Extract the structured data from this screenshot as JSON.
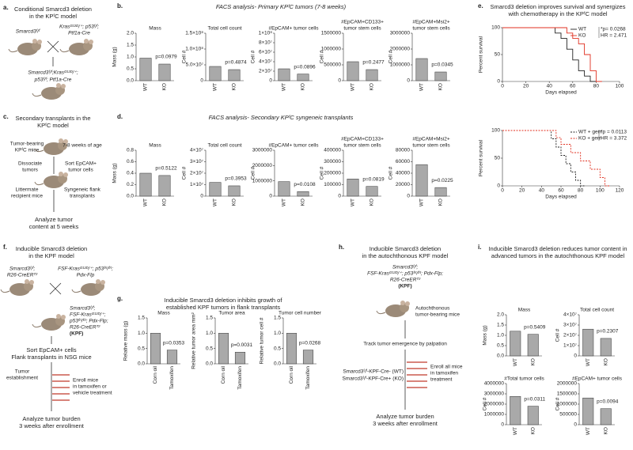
{
  "panels": {
    "a": {
      "label": "a.",
      "title": [
        "Conditional Smarcd3 deletion",
        "in the KPᶠC model"
      ],
      "texts": [
        "Smarcd3ᶠ/ᶠ",
        "Krasᴳ¹²ᴰ/⁺; p53ᶠ/ᶠ;",
        "Ptf1a-Cre",
        "Smarcd3ᶠ/ᶠ;Krasᴳ¹²ᴰ/⁺;",
        "p53ᶠ/ᶠ; Ptf1a-Cre"
      ]
    },
    "b": {
      "label": "b.",
      "title": "FACS analysis- Primary KPᶠC tumors (7-8 weeks)"
    },
    "c": {
      "label": "c.",
      "title": [
        "Secondary transplants in the",
        "KPᶠC model"
      ],
      "texts": [
        "Tumor-bearing",
        "KPᶠC mice",
        "7-8 weeks of age",
        "Dissociate",
        "tumors",
        "Sort EpCAM+",
        "tumor cells",
        "Littermate",
        "recipient mice",
        "Syngeneic flank",
        "transplants",
        "Analyze tumor",
        "content at 5 weeks"
      ]
    },
    "d": {
      "label": "d.",
      "title": "FACS analysis- Secondary KPᶠC syngeneic transplants"
    },
    "e": {
      "label": "e.",
      "title": [
        "Smarcd3 deletion improves survival and synergizes",
        "with chemotherapy in the KPᶠC model"
      ]
    },
    "f": {
      "label": "f.",
      "title": [
        "Inducible Smarcd3 deletion",
        "in the KPF model"
      ],
      "texts": [
        "Smarcd3ᶠ/ᶠ;",
        "R26-CreERᵀ²",
        "FSF-Krasᴳ¹²ᴰ/⁺; p53ᶠʳᵗ/ᶠʳᵗ;",
        "Pdx-Flp",
        "Smarcd3ᶠ/ᶠ;",
        "FSF-Krasᴳ¹²ᴰ/⁺;",
        "p53ᶠʳᵗ/ᶠʳᵗ; Pdx-Flp;",
        "R26-CreERᵀ²",
        "(KPF)",
        "Sort EpCAM+ cells",
        "Flank transplants in NSG mice",
        "Tumor",
        "establishment",
        "Enroll mice",
        "in tamoxifen or",
        "vehicle treatment",
        "Analyze tumor burden",
        "3 weeks after enrollment"
      ]
    },
    "g": {
      "label": "g.",
      "title": [
        "Inducible Smarcd3 deletion inhibits growth of",
        "established KPF tumors in flank transplants"
      ]
    },
    "h": {
      "label": "h.",
      "title": [
        "Inducible Smarcd3 deletion",
        "in the autochthonous KPF model"
      ],
      "texts": [
        "Smarcd3ᶠ/ᶠ;",
        "FSF-Krasᴳ¹²ᴰ/⁺; p53ᶠʳᵗ/ᶠʳᵗ; Pdx-Flp;",
        "R26-CreERᵀ²",
        "(KPF)",
        "Autochthonous",
        "tumor-bearing mice",
        "Track tumor emergence by palpation",
        "Smarcd3ᶠ/ᶠ-KPF-Cre- (WT)",
        "Smarcd3ᶠ/ᶠ-KPF-Cre+ (KO)",
        "Enroll all mice",
        "in tamoxifen",
        "treatment",
        "Analyze tumor burden",
        "3 weeks after enrollment"
      ]
    },
    "i": {
      "label": "i.",
      "title": [
        "Inducible Smarcd3 deletion reduces tumor content in",
        "advanced tumors in the autochthonous KPF model"
      ]
    }
  },
  "chart_data": [
    {
      "type": "bar",
      "title": [
        "Mass"
      ],
      "ylabel": "Mass (g)",
      "categories": [
        "WT",
        "KO"
      ],
      "values": [
        0.95,
        0.7
      ],
      "color": "#a9a9a9",
      "annotation": "p=0.0979",
      "ylim": [
        0,
        2
      ],
      "yticks": [
        {
          "value": 0,
          "label": "0.0"
        },
        {
          "value": 0.5,
          "label": "0.5"
        },
        {
          "value": 1,
          "label": "1.0"
        },
        {
          "value": 1.5,
          "label": "1.5"
        },
        {
          "value": 2,
          "label": "2.0"
        }
      ]
    },
    {
      "type": "bar",
      "title": [
        "Total cell count"
      ],
      "ylabel": "Cell #",
      "categories": [
        "WT",
        "KO"
      ],
      "values": [
        45000000,
        35000000
      ],
      "color": "#a9a9a9",
      "annotation": "p=0.4874",
      "ylim": [
        0,
        150000000
      ],
      "yticks": [
        0,
        {
          "value": 50000000,
          "label": "5.0×10⁷"
        },
        {
          "value": 100000000,
          "label": "1.0×10⁸"
        },
        {
          "value": 150000000,
          "label": "1.5×10⁸"
        }
      ]
    },
    {
      "type": "bar",
      "title": [
        "#EpCAM+ tumor cells"
      ],
      "ylabel": "Cell #",
      "categories": [
        "WT",
        "KO"
      ],
      "values": [
        25000000,
        14000000
      ],
      "color": "#a9a9a9",
      "annotation": "p=0.0896",
      "ylim": [
        0,
        100000000
      ],
      "yticks": [
        0,
        {
          "value": 20000000,
          "label": "2×10⁷"
        },
        {
          "value": 40000000,
          "label": "4×10⁷"
        },
        {
          "value": 60000000,
          "label": "6×10⁷"
        },
        {
          "value": 80000000,
          "label": "8×10⁷"
        },
        {
          "value": 100000000,
          "label": "1×10⁸"
        }
      ]
    },
    {
      "type": "bar",
      "title": [
        "#EpCAM+CD133+",
        "tumor stem cells"
      ],
      "ylabel": "Cell #",
      "categories": [
        "WT",
        "KO"
      ],
      "values": [
        600000,
        350000
      ],
      "color": "#a9a9a9",
      "annotation": "p=0.2477",
      "ylim": [
        0,
        1500000
      ],
      "yticks": [
        0,
        500000,
        1000000,
        1500000
      ]
    },
    {
      "type": "bar",
      "title": [
        "#EpCAM+Msi2+",
        "tumor stem cells"
      ],
      "ylabel": "Cell #",
      "categories": [
        "WT",
        "KO"
      ],
      "values": [
        1400000,
        550000
      ],
      "color": "#a9a9a9",
      "annotation": "p=0.0345",
      "ylim": [
        0,
        3000000
      ],
      "yticks": [
        0,
        1000000,
        2000000,
        3000000
      ]
    },
    {
      "type": "bar",
      "title": [
        "Mass"
      ],
      "ylabel": "Mass (g)",
      "categories": [
        "WT",
        "KO"
      ],
      "values": [
        0.4,
        0.36
      ],
      "color": "#a9a9a9",
      "annotation": "p=0.5122",
      "ylim": [
        0,
        0.8
      ],
      "yticks": [
        {
          "value": 0,
          "label": "0.0"
        },
        0.2,
        0.4,
        0.6,
        0.8
      ]
    },
    {
      "type": "bar",
      "title": [
        "Total cell count"
      ],
      "ylabel": "Cell #",
      "categories": [
        "WT",
        "KO"
      ],
      "values": [
        12000000,
        9000000
      ],
      "color": "#a9a9a9",
      "annotation": "p=0.3953",
      "ylim": [
        0,
        40000000
      ],
      "yticks": [
        0,
        {
          "value": 10000000,
          "label": "1×10⁷"
        },
        {
          "value": 20000000,
          "label": "2×10⁷"
        },
        {
          "value": 30000000,
          "label": "3×10⁷"
        },
        {
          "value": 40000000,
          "label": "4×10⁷"
        }
      ]
    },
    {
      "type": "bar",
      "title": [
        "#EpCAM+ tumor cells"
      ],
      "ylabel": "Cell #",
      "categories": [
        "WT",
        "KO"
      ],
      "values": [
        950000,
        300000
      ],
      "color": "#a9a9a9",
      "annotation": "p=0.0108",
      "ylim": [
        0,
        3000000
      ],
      "yticks": [
        0,
        1000000,
        2000000,
        3000000
      ]
    },
    {
      "type": "bar",
      "title": [
        "#EpCAM+CD133+",
        "tumor stem cells"
      ],
      "ylabel": "Cell #",
      "categories": [
        "WT",
        "KO"
      ],
      "values": [
        150000,
        85000
      ],
      "color": "#a9a9a9",
      "annotation": "p=0.0819",
      "ylim": [
        0,
        400000
      ],
      "yticks": [
        0,
        100000,
        200000,
        300000,
        400000
      ]
    },
    {
      "type": "bar",
      "title": [
        "#EpCAM+Msi2+",
        "tumor stem cells"
      ],
      "ylabel": "Cell #",
      "categories": [
        "WT",
        "KO"
      ],
      "values": [
        55000,
        15000
      ],
      "color": "#a9a9a9",
      "annotation": "p=0.0225",
      "ylim": [
        0,
        80000
      ],
      "yticks": [
        0,
        20000,
        40000,
        60000,
        80000
      ]
    },
    {
      "type": "line",
      "xlabel": "Days elapsed",
      "ylabel": "Percent survival",
      "annotation": [
        "*p= 0.0268",
        "HR = 2.471"
      ],
      "xlim": [
        0,
        100
      ],
      "xticks": [
        0,
        20,
        40,
        60,
        80,
        100
      ],
      "ylim": [
        0,
        100
      ],
      "yticks": [
        0,
        50,
        100
      ],
      "legend": "top-right",
      "series": [
        {
          "name": "WT",
          "color": "#222222",
          "dash": false,
          "x": [
            0,
            45,
            45,
            50,
            50,
            55,
            55,
            60,
            60,
            65,
            65,
            70,
            70,
            75,
            75,
            80
          ],
          "values": [
            100,
            100,
            90,
            90,
            80,
            80,
            60,
            60,
            40,
            40,
            20,
            20,
            10,
            10,
            0,
            0
          ]
        },
        {
          "name": "KO",
          "color": "#e03020",
          "dash": false,
          "x": [
            0,
            55,
            55,
            60,
            60,
            65,
            65,
            70,
            70,
            75,
            75,
            80,
            80,
            85
          ],
          "values": [
            100,
            100,
            90,
            90,
            80,
            80,
            70,
            70,
            50,
            50,
            20,
            20,
            0,
            0
          ]
        }
      ]
    },
    {
      "type": "line",
      "xlabel": "Days elapsed",
      "ylabel": "Percent survival",
      "annotation": [
        "*p = 0.0113",
        "HR = 3.372"
      ],
      "xlim": [
        0,
        120
      ],
      "xticks": [
        0,
        20,
        40,
        60,
        80,
        100,
        120
      ],
      "ylim": [
        0,
        100
      ],
      "yticks": [
        0,
        50,
        100
      ],
      "legend": "top-right",
      "series": [
        {
          "name": "WT + gem",
          "color": "#222222",
          "dash": true,
          "x": [
            0,
            50,
            50,
            55,
            55,
            60,
            60,
            65,
            65,
            70,
            70,
            75,
            75,
            80,
            80,
            85
          ],
          "values": [
            100,
            100,
            85,
            85,
            70,
            70,
            55,
            55,
            40,
            40,
            25,
            25,
            10,
            10,
            0,
            0
          ]
        },
        {
          "name": "KO + gem",
          "color": "#e03020",
          "dash": true,
          "x": [
            0,
            55,
            55,
            60,
            60,
            70,
            70,
            80,
            80,
            90,
            90,
            100,
            100,
            105,
            105,
            110
          ],
          "values": [
            100,
            100,
            87,
            87,
            75,
            75,
            60,
            60,
            45,
            45,
            30,
            30,
            15,
            15,
            0,
            0
          ]
        }
      ]
    },
    {
      "type": "bar",
      "title": [
        "Mass"
      ],
      "ylabel": "Relative mass (g)",
      "categories": [
        "Corn oil",
        "Tamoxifen"
      ],
      "values": [
        1,
        0.45
      ],
      "color": "#a9a9a9",
      "annotation": "p=0.0353",
      "ylim": [
        0,
        1.5
      ],
      "yticks": [
        {
          "value": 0,
          "label": "0.0"
        },
        0.5,
        {
          "value": 1,
          "label": "1.0"
        },
        1.5
      ]
    },
    {
      "type": "bar",
      "title": [
        "Tumor area"
      ],
      "ylabel": "Relative tumor area mm²",
      "categories": [
        "Corn oil",
        "Tamoxifen"
      ],
      "values": [
        1,
        0.38
      ],
      "color": "#a9a9a9",
      "annotation": "p=0.0031",
      "ylim": [
        0,
        1.5
      ],
      "yticks": [
        {
          "value": 0,
          "label": "0.0"
        },
        0.5,
        {
          "value": 1,
          "label": "1.0"
        },
        1.5
      ]
    },
    {
      "type": "bar",
      "title": [
        "Tumor cell number"
      ],
      "ylabel": "Relative tumor cell #",
      "categories": [
        "Corn oil",
        "Tamoxifen"
      ],
      "values": [
        1,
        0.45
      ],
      "color": "#a9a9a9",
      "annotation": "p=0.0268",
      "ylim": [
        0,
        1.5
      ],
      "yticks": [
        {
          "value": 0,
          "label": "0.0"
        },
        0.5,
        {
          "value": 1,
          "label": "1.0"
        },
        1.5
      ]
    },
    {
      "type": "bar",
      "title": [
        "Mass"
      ],
      "ylabel": "Mass (g)",
      "categories": [
        "WT",
        "KO"
      ],
      "values": [
        1.2,
        1.05
      ],
      "color": "#a9a9a9",
      "annotation": "p=0.5409",
      "ylim": [
        0,
        2
      ],
      "yticks": [
        {
          "value": 0,
          "label": "0.0"
        },
        {
          "value": 0.5,
          "label": "0.5"
        },
        {
          "value": 1,
          "label": "1.0"
        },
        {
          "value": 1.5,
          "label": "1.5"
        },
        {
          "value": 2,
          "label": "2.0"
        }
      ]
    },
    {
      "type": "bar",
      "title": [
        "Total cell count"
      ],
      "ylabel": "Cell #",
      "categories": [
        "WT",
        "KO"
      ],
      "values": [
        26000000,
        17000000
      ],
      "color": "#a9a9a9",
      "annotation": "p=0.2307",
      "ylim": [
        0,
        40000000
      ],
      "yticks": [
        0,
        {
          "value": 10000000,
          "label": "1×10⁷"
        },
        {
          "value": 20000000,
          "label": "2×10⁷"
        },
        {
          "value": 30000000,
          "label": "3×10⁷"
        },
        {
          "value": 40000000,
          "label": "4×10⁷"
        }
      ]
    },
    {
      "type": "bar",
      "title": [
        "#Total tumor cells"
      ],
      "ylabel": "Cell #",
      "categories": [
        "WT",
        "KO"
      ],
      "values": [
        2750000,
        1800000
      ],
      "color": "#a9a9a9",
      "annotation": "p=0.0311",
      "ylim": [
        0,
        4000000
      ],
      "yticks": [
        0,
        1000000,
        2000000,
        3000000,
        4000000
      ]
    },
    {
      "type": "bar",
      "title": [
        "#EpCAM+ tumor cells"
      ],
      "ylabel": "Cell #",
      "categories": [
        "WT",
        "KO"
      ],
      "values": [
        1300000,
        780000
      ],
      "color": "#a9a9a9",
      "annotation": "p=0.0094",
      "ylim": [
        0,
        2000000
      ],
      "yticks": [
        0,
        500000,
        1000000,
        1500000,
        2000000
      ]
    }
  ]
}
